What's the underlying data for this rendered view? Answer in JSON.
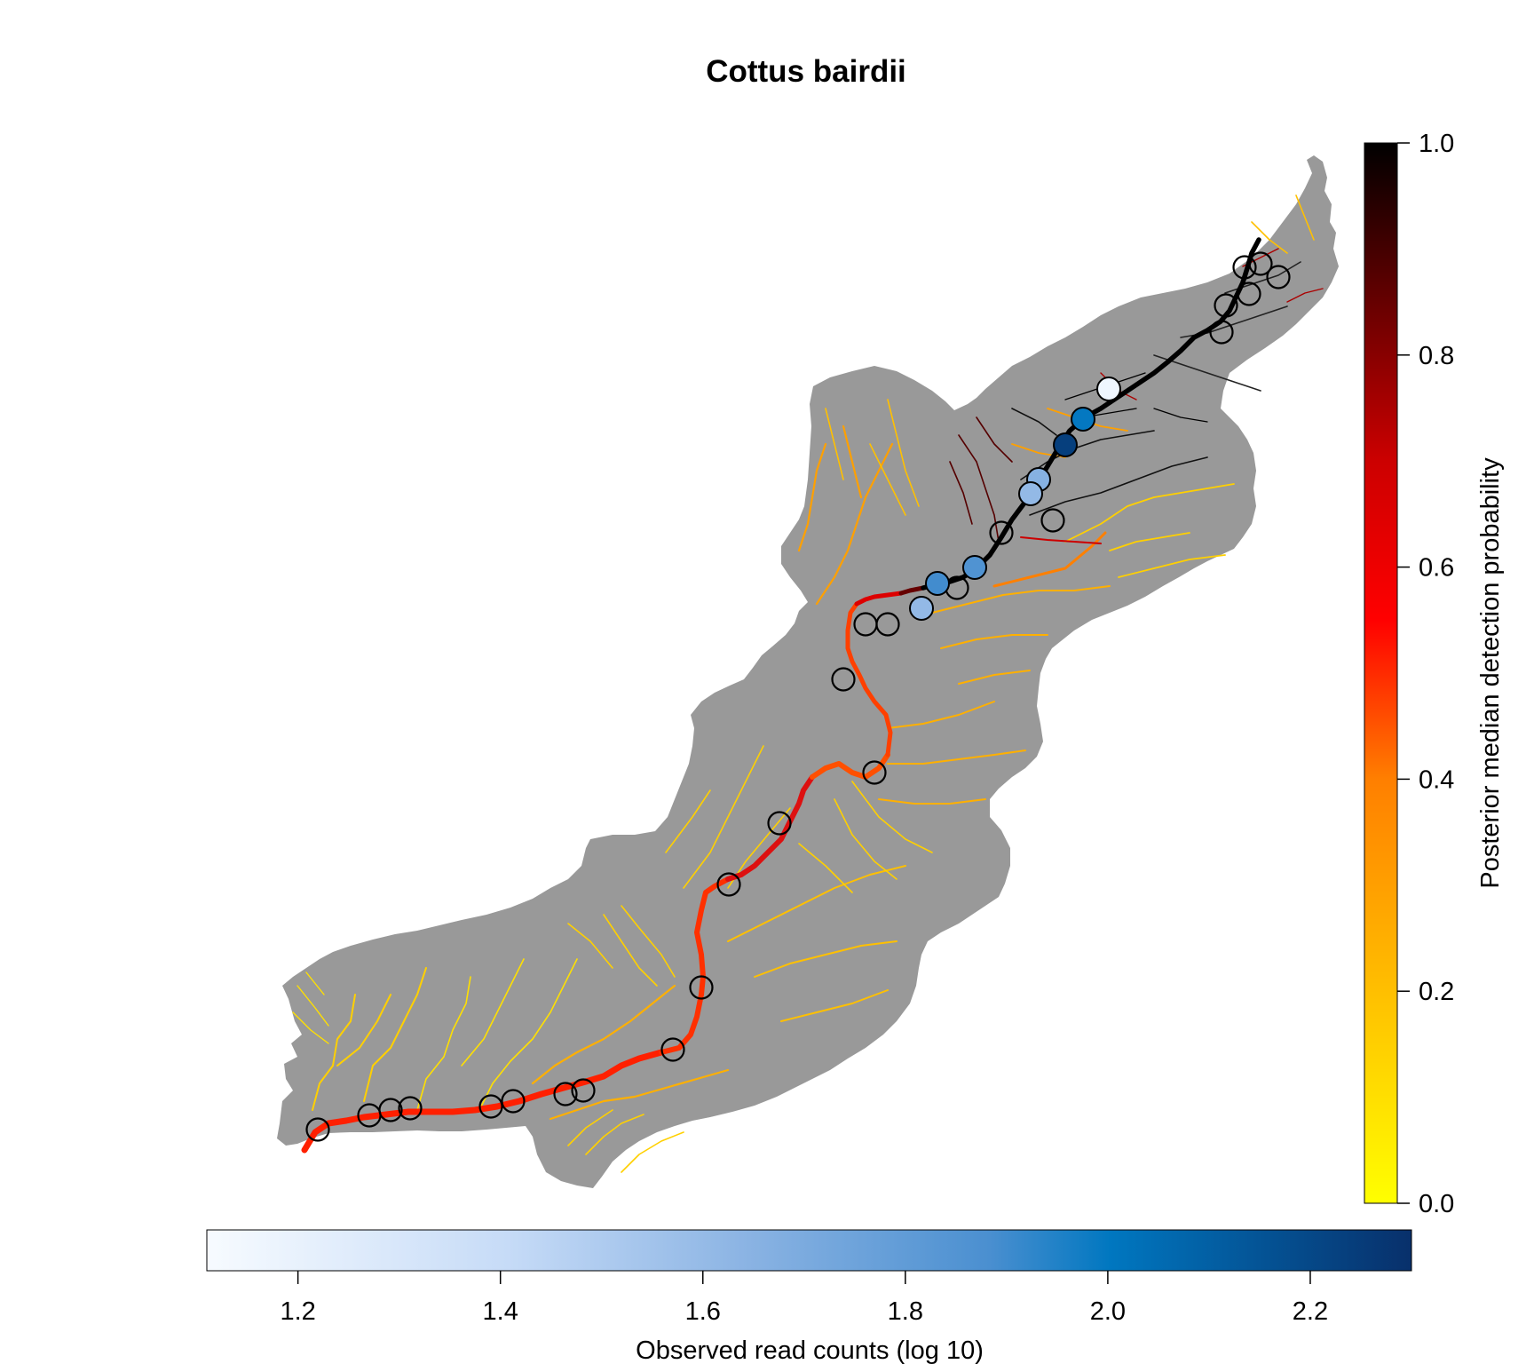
{
  "title": "Cottus bairdii",
  "colorbar_probability": {
    "title": "Posterior median detection probability",
    "ticks": [
      "0.0",
      "0.2",
      "0.4",
      "0.6",
      "0.8",
      "1.0"
    ],
    "range": [
      0,
      1
    ],
    "colors": [
      "#ffff00",
      "#ffbf00",
      "#ff7f00",
      "#ff0000",
      "#cc0000",
      "#660000",
      "#000000"
    ]
  },
  "colorbar_reads": {
    "title": "Observed read counts (log 10)",
    "ticks": [
      "1.2",
      "1.4",
      "1.6",
      "1.8",
      "2.0",
      "2.2"
    ],
    "range": [
      1.11,
      2.3
    ],
    "colors": [
      "#f7fbff",
      "#c6dbf7",
      "#8ab3e3",
      "#4a8fd0",
      "#0077c0",
      "#08306b"
    ]
  },
  "map": {
    "basin_color": "#999999",
    "empty_site_stroke": "#000000",
    "sites_with_reads": [
      {
        "log10_reads": 1.15
      },
      {
        "log10_reads": 1.85
      },
      {
        "log10_reads": 2.05
      },
      {
        "log10_reads": 1.6
      },
      {
        "log10_reads": 1.55
      },
      {
        "log10_reads": 2.25
      },
      {
        "log10_reads": 1.8
      },
      {
        "log10_reads": 1.55
      },
      {
        "log10_reads": 2.25
      }
    ],
    "sites_without_reads_count": 25
  }
}
